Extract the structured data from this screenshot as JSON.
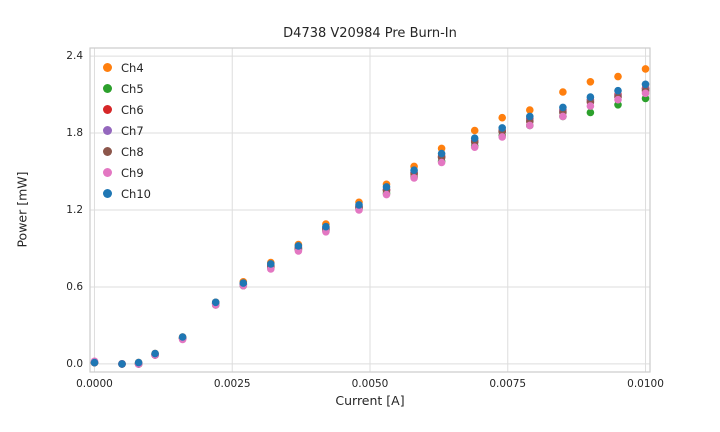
{
  "figure": {
    "background": "#ffffff",
    "frame_color": "#cccccc",
    "grid_color": "#dddddd"
  },
  "chart_data": {
    "type": "scatter",
    "title": "D4738 V20984 Pre Burn-In",
    "xlabel": "Current [A]",
    "ylabel": "Power [mW]",
    "xlim": [
      0,
      0.01
    ],
    "ylim": [
      0,
      2.4
    ],
    "grid": true,
    "legend_position": "upper-left",
    "xtick_values": [
      0.0,
      0.0025,
      0.005,
      0.0075,
      0.01
    ],
    "xtick_labels": [
      "0.0000",
      "0.0025",
      "0.0050",
      "0.0075",
      "0.0100"
    ],
    "ytick_values": [
      0.0,
      0.6,
      1.2,
      1.8,
      2.4
    ],
    "ytick_labels": [
      "0.0",
      "0.6",
      "1.2",
      "1.8",
      "2.4"
    ],
    "x": [
      0.0,
      0.0005,
      0.0008,
      0.0011,
      0.0016,
      0.0022,
      0.0027,
      0.0032,
      0.0037,
      0.0042,
      0.0048,
      0.0053,
      0.0058,
      0.0063,
      0.0069,
      0.0074,
      0.0079,
      0.0085,
      0.009,
      0.0095,
      0.01
    ],
    "series": [
      {
        "name": "Ch4",
        "color": "#ff7f0e",
        "values": [
          0.01,
          0.0,
          0.01,
          0.08,
          0.21,
          0.48,
          0.64,
          0.79,
          0.93,
          1.09,
          1.26,
          1.4,
          1.54,
          1.68,
          1.82,
          1.92,
          1.98,
          2.12,
          2.2,
          2.24,
          2.3
        ]
      },
      {
        "name": "Ch5",
        "color": "#2ca02c",
        "values": [
          0.01,
          0.0,
          0.0,
          0.07,
          0.2,
          0.46,
          0.61,
          0.75,
          0.89,
          1.04,
          1.21,
          1.33,
          1.46,
          1.58,
          1.7,
          1.78,
          1.86,
          1.93,
          1.96,
          2.02,
          2.07
        ]
      },
      {
        "name": "Ch6",
        "color": "#d62728",
        "values": [
          0.01,
          0.0,
          0.0,
          0.07,
          0.2,
          0.47,
          0.62,
          0.77,
          0.91,
          1.06,
          1.23,
          1.36,
          1.49,
          1.62,
          1.74,
          1.82,
          1.91,
          1.98,
          2.06,
          2.1,
          2.15
        ]
      },
      {
        "name": "Ch7",
        "color": "#9467bd",
        "values": [
          0.01,
          0.0,
          0.0,
          0.07,
          0.2,
          0.47,
          0.62,
          0.76,
          0.9,
          1.06,
          1.22,
          1.36,
          1.49,
          1.61,
          1.73,
          1.81,
          1.9,
          1.97,
          2.05,
          2.09,
          2.14
        ]
      },
      {
        "name": "Ch8",
        "color": "#8c564b",
        "values": [
          0.01,
          0.0,
          0.0,
          0.07,
          0.2,
          0.47,
          0.62,
          0.76,
          0.9,
          1.05,
          1.22,
          1.35,
          1.48,
          1.61,
          1.73,
          1.81,
          1.89,
          1.96,
          2.04,
          2.08,
          2.13
        ]
      },
      {
        "name": "Ch9",
        "color": "#e377c2",
        "values": [
          0.02,
          0.0,
          0.0,
          0.07,
          0.19,
          0.46,
          0.61,
          0.74,
          0.88,
          1.03,
          1.2,
          1.32,
          1.45,
          1.57,
          1.69,
          1.77,
          1.86,
          1.93,
          2.01,
          2.06,
          2.11
        ]
      },
      {
        "name": "Ch10",
        "color": "#1f77b4",
        "values": [
          0.01,
          0.0,
          0.01,
          0.08,
          0.21,
          0.48,
          0.63,
          0.78,
          0.92,
          1.07,
          1.24,
          1.38,
          1.51,
          1.64,
          1.76,
          1.84,
          1.93,
          2.0,
          2.08,
          2.13,
          2.18
        ]
      }
    ]
  }
}
